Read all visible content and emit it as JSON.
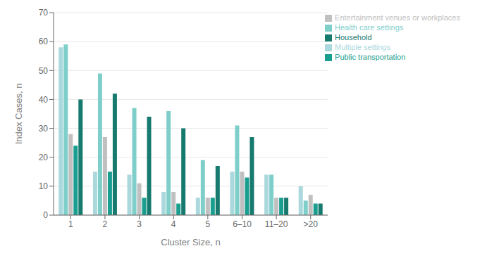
{
  "chart_data": {
    "type": "bar",
    "xlabel": "Cluster Size, n",
    "ylabel": "Index Cases, n",
    "categories": [
      "1",
      "2",
      "3",
      "4",
      "5",
      "6–10",
      "11–20",
      ">20"
    ],
    "series": [
      {
        "name": "Multiple settings",
        "color": "#aad8dc",
        "values": [
          58,
          15,
          14,
          8,
          6,
          15,
          14,
          10
        ]
      },
      {
        "name": "Health care settings",
        "color": "#7ececa",
        "values": [
          59,
          49,
          37,
          36,
          19,
          31,
          14,
          5
        ]
      },
      {
        "name": "Entertainment venues or workplaces",
        "color": "#c0c0c0",
        "values": [
          28,
          27,
          11,
          8,
          6,
          15,
          6,
          7
        ]
      },
      {
        "name": "Public transportation",
        "color": "#1a9e8f",
        "values": [
          24,
          15,
          6,
          4,
          6,
          13,
          6,
          4
        ]
      },
      {
        "name": "Household",
        "color": "#177a6e",
        "values": [
          40,
          42,
          34,
          30,
          17,
          27,
          6,
          4
        ]
      }
    ],
    "ylim": [
      0,
      70
    ],
    "yticks": [
      0,
      10,
      20,
      30,
      40,
      50,
      60,
      70
    ],
    "grid": true,
    "legend": "upper right"
  }
}
